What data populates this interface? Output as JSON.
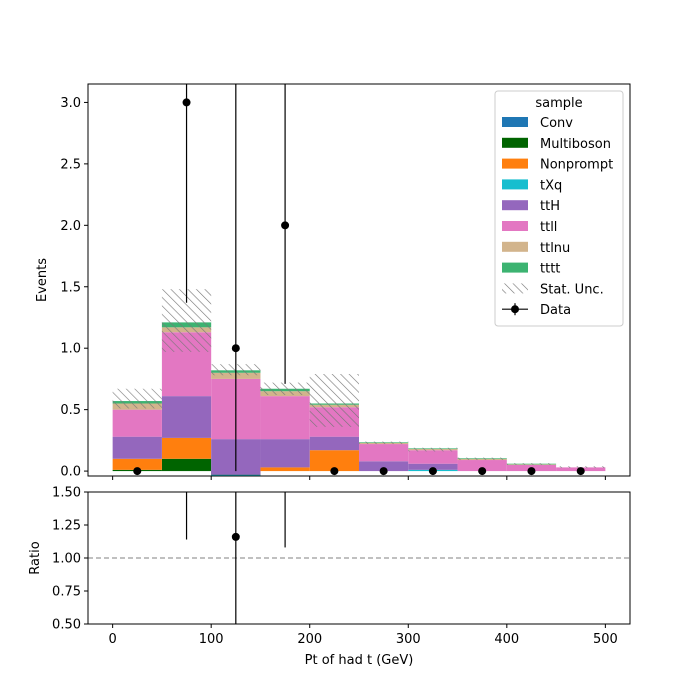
{
  "chart_data": {
    "type": "bar",
    "stacked": true,
    "bin_edges": [
      0,
      50,
      100,
      150,
      200,
      250,
      300,
      350,
      400,
      450,
      500
    ],
    "xlabel": "Pt of had t (GeV)",
    "ylabel": "Events",
    "ratio_ylabel": "Ratio",
    "xlim": [
      -25,
      525
    ],
    "ylim": [
      -0.04,
      3.15
    ],
    "ratio_ylim": [
      0.5,
      1.5
    ],
    "x_ticks": [
      "0",
      "100",
      "200",
      "300",
      "400",
      "500"
    ],
    "y_ticks": [
      "0.0",
      "0.5",
      "1.0",
      "1.5",
      "2.0",
      "2.5",
      "3.0"
    ],
    "ratio_y_ticks": [
      "0.50",
      "0.75",
      "1.00",
      "1.25",
      "1.50"
    ],
    "legend_title": "sample",
    "legend_position": "top-right",
    "series": [
      {
        "name": "Conv",
        "color": "#1f77b4",
        "values": [
          0,
          0,
          0,
          0,
          0,
          0,
          0,
          0,
          0,
          0
        ]
      },
      {
        "name": "Multiboson",
        "color": "#006400",
        "values": [
          0.01,
          0.1,
          -0.04,
          0,
          0,
          0,
          0,
          0,
          0,
          0
        ]
      },
      {
        "name": "Nonprompt",
        "color": "#ff7f0e",
        "values": [
          0.09,
          0.17,
          0,
          0.03,
          0.17,
          0,
          0,
          0,
          0,
          0
        ]
      },
      {
        "name": "tXq",
        "color": "#17becf",
        "values": [
          0,
          0,
          0.01,
          0,
          0,
          0,
          0.01,
          0,
          0,
          0
        ]
      },
      {
        "name": "ttH",
        "color": "#9467bd",
        "values": [
          0.18,
          0.34,
          0.29,
          0.23,
          0.11,
          0.08,
          0.05,
          0,
          0,
          0
        ]
      },
      {
        "name": "ttll",
        "color": "#e377c2",
        "values": [
          0.22,
          0.52,
          0.49,
          0.35,
          0.24,
          0.14,
          0.11,
          0.09,
          0.05,
          0.03
        ]
      },
      {
        "name": "ttlnu",
        "color": "#d2b48c",
        "values": [
          0.05,
          0.04,
          0.05,
          0.04,
          0.02,
          0.01,
          0.01,
          0.01,
          0.005,
          0
        ]
      },
      {
        "name": "tttt",
        "color": "#3cb371",
        "values": [
          0.02,
          0.04,
          0.02,
          0.02,
          0.01,
          0.005,
          0.005,
          0.005,
          0.005,
          0
        ]
      }
    ],
    "stat_unc": {
      "name": "Stat. Unc.",
      "down": [
        0.51,
        0.97,
        0.78,
        0.62,
        0.36,
        0.22,
        0.16,
        0.09,
        0.05,
        0.025
      ],
      "up": [
        0.67,
        1.48,
        0.87,
        0.72,
        0.79,
        0.24,
        0.19,
        0.11,
        0.065,
        0.04
      ]
    },
    "data": {
      "name": "Data",
      "x": [
        25,
        75,
        125,
        175,
        225,
        275,
        325,
        375,
        425,
        475
      ],
      "y": [
        0,
        3,
        1,
        2,
        0,
        0,
        0,
        0,
        0,
        0
      ],
      "err_low": [
        0,
        1.63,
        1.0,
        1.29,
        0,
        0,
        0,
        0,
        0,
        0
      ],
      "err_high": [
        0,
        2.37,
        2.3,
        2.64,
        0,
        0,
        0,
        0,
        0,
        0
      ]
    },
    "ratio": {
      "x": [
        125
      ],
      "y": [
        1.16
      ],
      "err_lines": [
        {
          "x": 75,
          "low": 1.14,
          "high": 1.5
        },
        {
          "x": 125,
          "low": 0.5,
          "high": 1.5
        },
        {
          "x": 175,
          "low": 1.08,
          "high": 1.5
        }
      ],
      "reference": 1.0
    }
  }
}
